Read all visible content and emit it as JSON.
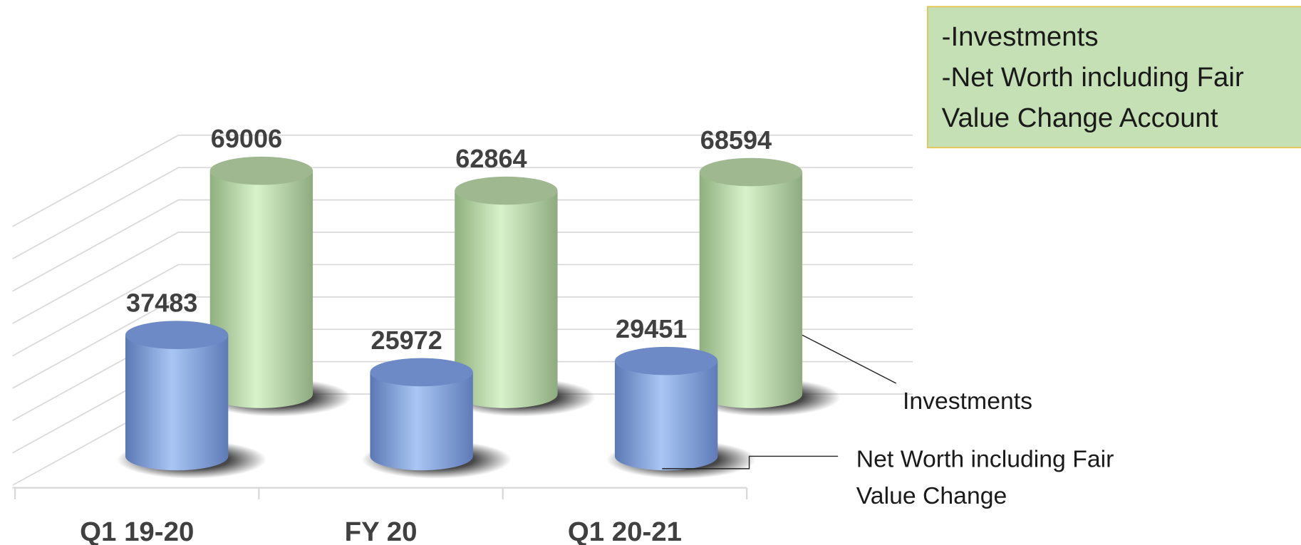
{
  "chart_data": {
    "type": "cylinder3d",
    "categories": [
      "Q1 19-20",
      "FY 20",
      "Q1 20-21"
    ],
    "series": [
      {
        "name": "Net Worth including Fair Value Change",
        "color": "#7f9fdc",
        "values": [
          37483,
          25972,
          29451
        ]
      },
      {
        "name": "Investments",
        "color": "#b5dba3",
        "values": [
          69006,
          62864,
          68594
        ]
      }
    ],
    "ylim": [
      0,
      80000
    ],
    "yticks": [
      0,
      10000,
      20000,
      30000,
      40000,
      50000,
      60000,
      70000,
      80000
    ],
    "grid": true,
    "note_box": [
      "-Investments",
      "-Net Worth including Fair",
      "Value Change Account"
    ]
  }
}
